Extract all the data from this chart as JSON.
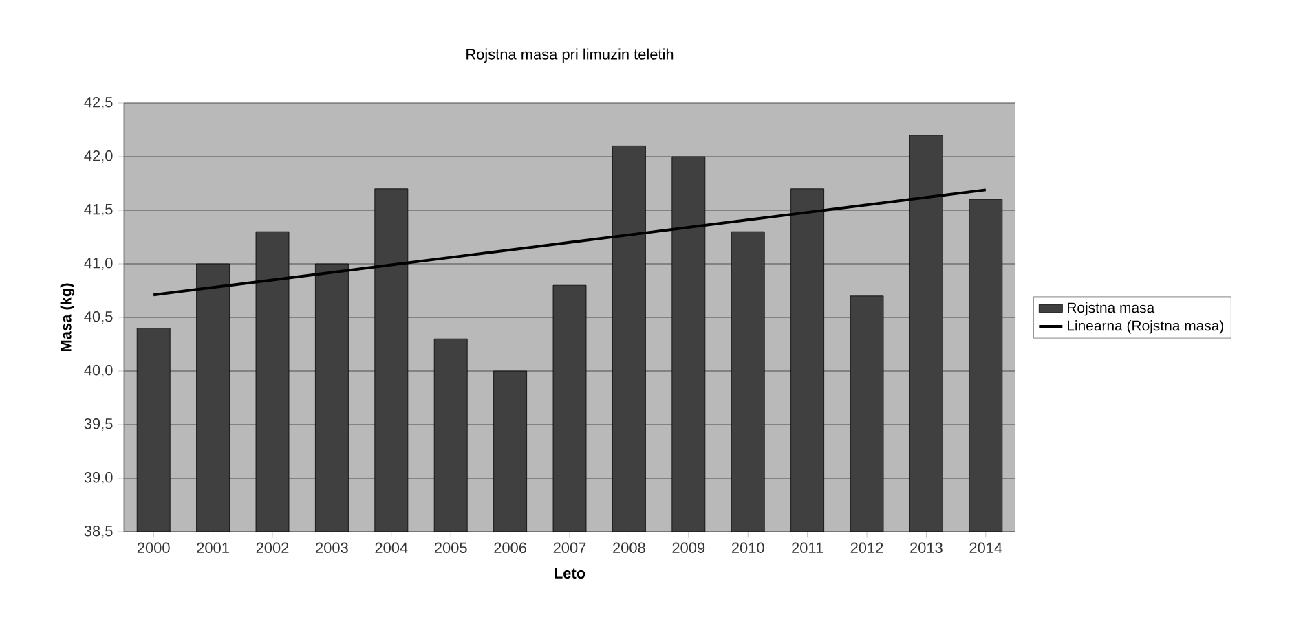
{
  "chart_data": {
    "type": "bar",
    "title": "Rojstna masa pri limuzin teletih",
    "xlabel": "Leto",
    "ylabel": "Masa (kg)",
    "categories": [
      "2000",
      "2001",
      "2002",
      "2003",
      "2004",
      "2005",
      "2006",
      "2007",
      "2008",
      "2009",
      "2010",
      "2011",
      "2012",
      "2013",
      "2014"
    ],
    "series": [
      {
        "name": "Rojstna masa",
        "color": "#404040",
        "values": [
          40.4,
          41.0,
          41.3,
          41.0,
          41.7,
          40.3,
          40.0,
          40.8,
          42.1,
          42.0,
          41.3,
          41.7,
          40.7,
          42.2,
          41.6
        ]
      },
      {
        "name": "Linearna (Rojstna masa)",
        "type": "line",
        "color": "#000000",
        "values": [
          40.71,
          40.78,
          40.85,
          40.92,
          40.99,
          41.06,
          41.13,
          41.2,
          41.27,
          41.34,
          41.41,
          41.48,
          41.55,
          41.62,
          41.69
        ]
      }
    ],
    "ylim": [
      38.5,
      42.5
    ],
    "yticks": [
      {
        "value": 38.5,
        "label": "38,5"
      },
      {
        "value": 39,
        "label": "39,0"
      },
      {
        "value": 39.5,
        "label": "39,5"
      },
      {
        "value": 40,
        "label": "40,0"
      },
      {
        "value": 40.5,
        "label": "40,5"
      },
      {
        "value": 41,
        "label": "41,0"
      },
      {
        "value": 41.5,
        "label": "41,5"
      },
      {
        "value": 42,
        "label": "42,0"
      },
      {
        "value": 42.5,
        "label": "42,5"
      }
    ],
    "grid": "y",
    "legend": "right"
  }
}
